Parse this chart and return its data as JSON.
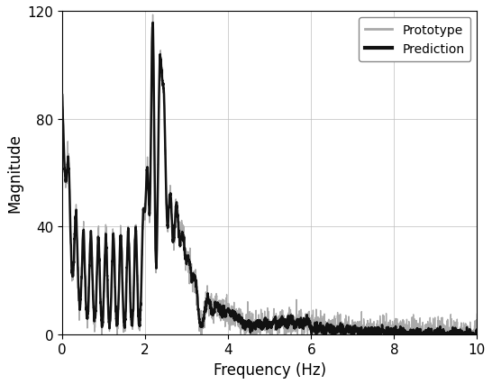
{
  "title": "",
  "xlabel": "Frequency (Hz)",
  "ylabel": "Magnitude",
  "xlim": [
    0,
    10
  ],
  "ylim": [
    0,
    120
  ],
  "xticks": [
    0,
    2,
    4,
    6,
    8,
    10
  ],
  "yticks": [
    0,
    40,
    80,
    120
  ],
  "grid_color": "#bbbbbb",
  "prototype_color": "#aaaaaa",
  "prediction_color": "#111111",
  "prototype_lw": 1.0,
  "prediction_lw": 1.8,
  "legend_labels": [
    "Prototype",
    "Prediction"
  ],
  "figsize": [
    5.46,
    4.27
  ],
  "dpi": 100
}
